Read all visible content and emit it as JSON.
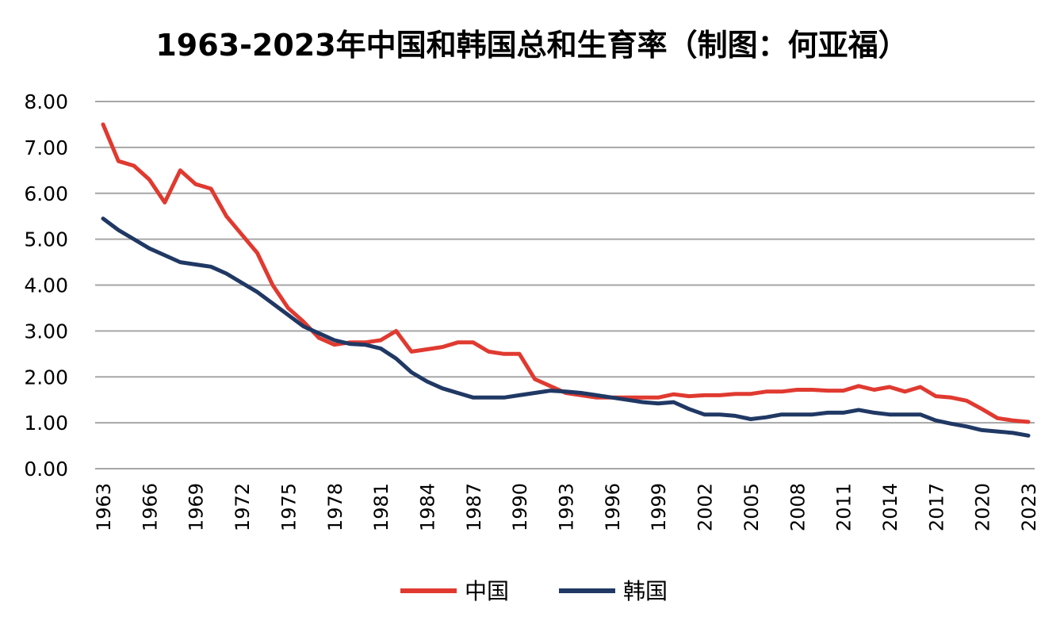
{
  "chart_data": {
    "type": "line",
    "title": "1963-2023年中国和韩国总和生育率（制图：何亚福）",
    "xlabel": "",
    "ylabel": "",
    "ylim": [
      0,
      8
    ],
    "yticks": [
      "0.00",
      "1.00",
      "2.00",
      "3.00",
      "4.00",
      "5.00",
      "6.00",
      "7.00",
      "8.00"
    ],
    "xticks": [
      "1963",
      "1966",
      "1969",
      "1972",
      "1975",
      "1978",
      "1981",
      "1984",
      "1987",
      "1990",
      "1993",
      "1996",
      "1999",
      "2002",
      "2005",
      "2008",
      "2011",
      "2014",
      "2017",
      "2020",
      "2023"
    ],
    "x": [
      1963,
      1964,
      1965,
      1966,
      1967,
      1968,
      1969,
      1970,
      1971,
      1972,
      1973,
      1974,
      1975,
      1976,
      1977,
      1978,
      1979,
      1980,
      1981,
      1982,
      1983,
      1984,
      1985,
      1986,
      1987,
      1988,
      1989,
      1990,
      1991,
      1992,
      1993,
      1994,
      1995,
      1996,
      1997,
      1998,
      1999,
      2000,
      2001,
      2002,
      2003,
      2004,
      2005,
      2006,
      2007,
      2008,
      2009,
      2010,
      2011,
      2012,
      2013,
      2014,
      2015,
      2016,
      2017,
      2018,
      2019,
      2020,
      2021,
      2022,
      2023
    ],
    "grid": true,
    "legend_position": "bottom",
    "series": [
      {
        "name": "中国",
        "color": "#e03a30",
        "values": [
          7.5,
          6.7,
          6.6,
          6.3,
          5.8,
          6.5,
          6.2,
          6.1,
          5.5,
          5.1,
          4.7,
          4.0,
          3.5,
          3.2,
          2.85,
          2.7,
          2.75,
          2.75,
          2.8,
          3.0,
          2.55,
          2.6,
          2.65,
          2.75,
          2.75,
          2.55,
          2.5,
          2.5,
          1.95,
          1.8,
          1.65,
          1.6,
          1.55,
          1.55,
          1.55,
          1.55,
          1.55,
          1.62,
          1.58,
          1.6,
          1.6,
          1.63,
          1.63,
          1.68,
          1.68,
          1.72,
          1.72,
          1.7,
          1.7,
          1.8,
          1.72,
          1.78,
          1.68,
          1.78,
          1.58,
          1.55,
          1.48,
          1.3,
          1.1,
          1.05,
          1.02
        ]
      },
      {
        "name": "韩国",
        "color": "#203864",
        "values": [
          5.45,
          5.2,
          5.0,
          4.8,
          4.65,
          4.5,
          4.45,
          4.4,
          4.25,
          4.05,
          3.85,
          3.6,
          3.35,
          3.1,
          2.95,
          2.8,
          2.72,
          2.7,
          2.62,
          2.4,
          2.1,
          1.9,
          1.75,
          1.65,
          1.55,
          1.55,
          1.55,
          1.6,
          1.65,
          1.7,
          1.68,
          1.65,
          1.6,
          1.55,
          1.5,
          1.45,
          1.42,
          1.45,
          1.3,
          1.18,
          1.18,
          1.15,
          1.08,
          1.12,
          1.18,
          1.18,
          1.18,
          1.22,
          1.22,
          1.28,
          1.22,
          1.18,
          1.18,
          1.18,
          1.05,
          0.98,
          0.92,
          0.84,
          0.81,
          0.78,
          0.72
        ]
      }
    ]
  }
}
